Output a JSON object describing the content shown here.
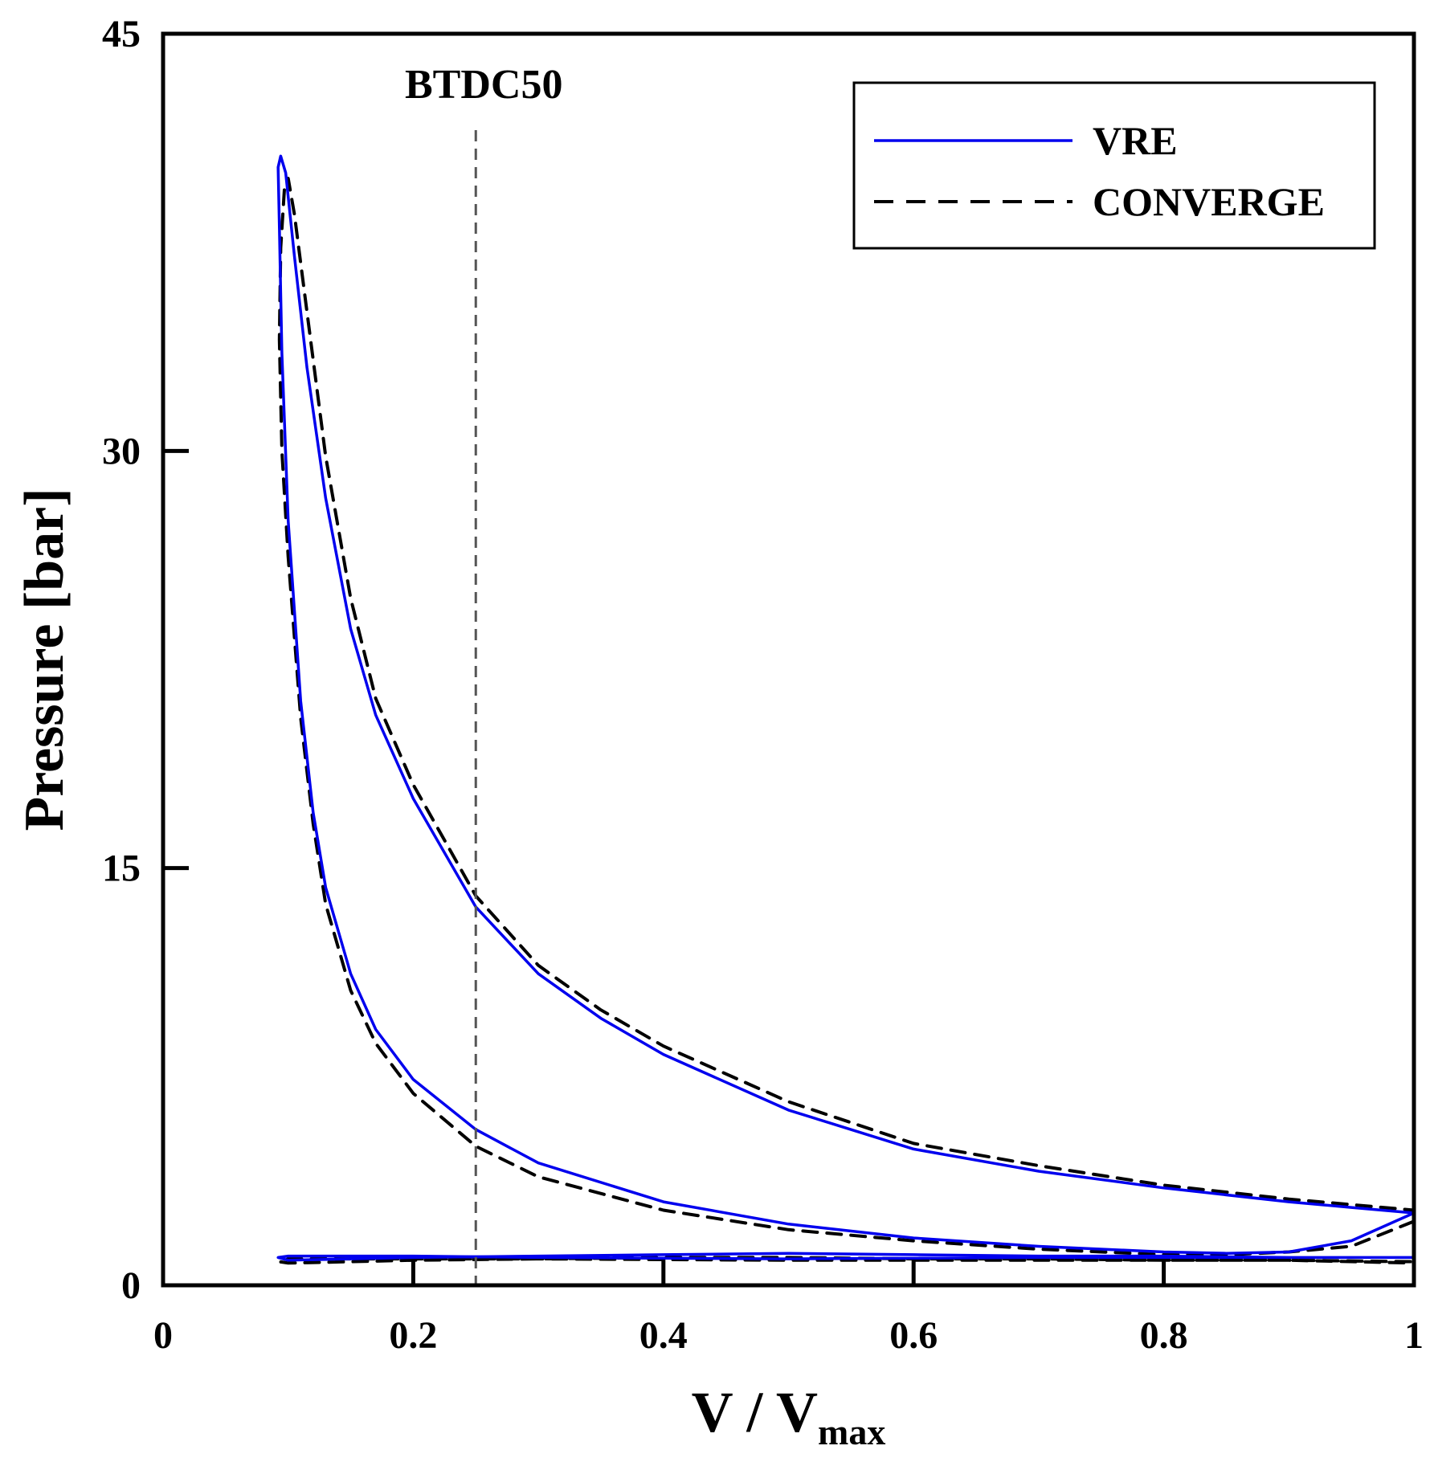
{
  "chart_data": {
    "type": "line",
    "title": "",
    "xlabel": {
      "main": "V / V",
      "subscript": "max"
    },
    "ylabel": "Pressure [bar]",
    "xlim": [
      0,
      1
    ],
    "ylim": [
      0,
      45
    ],
    "xticks": [
      "0",
      "0.2",
      "0.4",
      "0.6",
      "0.8",
      "1"
    ],
    "xtick_values": [
      0,
      0.2,
      0.4,
      0.6,
      0.8,
      1
    ],
    "yticks": [
      "0",
      "15",
      "30",
      "45"
    ],
    "ytick_values": [
      0,
      15,
      30,
      45
    ],
    "grid": false,
    "legend_position": "top-right",
    "annotation": {
      "label": "BTDC50",
      "x": 0.25
    },
    "series": [
      {
        "name": "VRE",
        "color": "#0000ee",
        "style": "solid",
        "x": [
          1.0,
          0.95,
          0.9,
          0.85,
          0.8,
          0.7,
          0.6,
          0.5,
          0.4,
          0.3,
          0.25,
          0.2,
          0.17,
          0.15,
          0.13,
          0.12,
          0.11,
          0.1,
          0.095,
          0.093,
          0.092,
          0.094,
          0.098,
          0.105,
          0.115,
          0.13,
          0.15,
          0.17,
          0.2,
          0.25,
          0.3,
          0.35,
          0.4,
          0.5,
          0.6,
          0.7,
          0.8,
          0.9,
          0.95,
          1.0,
          1.0,
          0.9,
          0.8,
          0.7,
          0.6,
          0.5,
          0.4,
          0.3,
          0.2,
          0.15,
          0.1,
          0.092,
          0.1,
          0.2,
          0.3,
          0.5,
          0.7,
          0.9,
          1.0
        ],
        "y": [
          2.6,
          1.6,
          1.2,
          1.15,
          1.2,
          1.4,
          1.7,
          2.2,
          3.0,
          4.4,
          5.6,
          7.4,
          9.2,
          11.2,
          14.3,
          17.0,
          21.0,
          27.5,
          33.5,
          38.0,
          40.2,
          40.6,
          40.0,
          37.0,
          33.0,
          28.3,
          23.6,
          20.5,
          17.5,
          13.6,
          11.2,
          9.6,
          8.3,
          6.3,
          4.9,
          4.1,
          3.5,
          3.0,
          2.8,
          2.6,
          1.0,
          1.0,
          1.05,
          1.05,
          1.1,
          1.15,
          1.1,
          1.05,
          1.0,
          0.95,
          0.9,
          1.0,
          1.05,
          1.05,
          1.0,
          0.95,
          1.0,
          1.0,
          1.0
        ]
      },
      {
        "name": "CONVERGE",
        "color": "#000000",
        "style": "dashed",
        "x": [
          1.0,
          0.95,
          0.9,
          0.85,
          0.8,
          0.7,
          0.6,
          0.5,
          0.4,
          0.3,
          0.25,
          0.2,
          0.17,
          0.15,
          0.13,
          0.12,
          0.11,
          0.1,
          0.095,
          0.093,
          0.094,
          0.097,
          0.1,
          0.105,
          0.115,
          0.13,
          0.15,
          0.17,
          0.2,
          0.25,
          0.3,
          0.35,
          0.4,
          0.5,
          0.6,
          0.7,
          0.8,
          0.9,
          0.95,
          1.0,
          1.0,
          0.9,
          0.8,
          0.7,
          0.6,
          0.5,
          0.4,
          0.3,
          0.2,
          0.15,
          0.1,
          0.093,
          0.1,
          0.2,
          0.3,
          0.5,
          0.7,
          0.9,
          1.0
        ],
        "y": [
          2.3,
          1.4,
          1.2,
          1.1,
          1.1,
          1.3,
          1.6,
          2.0,
          2.7,
          3.9,
          5.0,
          6.9,
          8.7,
          10.6,
          13.7,
          16.6,
          20.4,
          26.2,
          30.0,
          34.0,
          37.3,
          39.4,
          39.8,
          38.5,
          35.0,
          29.8,
          24.7,
          21.1,
          18.0,
          14.0,
          11.5,
          9.9,
          8.6,
          6.6,
          5.1,
          4.3,
          3.6,
          3.1,
          2.9,
          2.7,
          0.8,
          0.9,
          0.9,
          0.95,
          0.95,
          1.0,
          1.0,
          0.95,
          0.9,
          0.85,
          0.8,
          0.85,
          0.95,
          0.95,
          0.95,
          0.9,
          0.9,
          0.9,
          0.85
        ]
      }
    ]
  }
}
